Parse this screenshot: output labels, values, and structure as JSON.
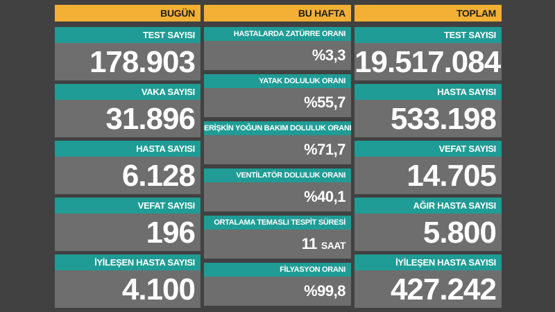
{
  "columns": {
    "today": {
      "header": "BUGÜN",
      "cards": [
        {
          "label": "TEST SAYISI",
          "value": "178.903"
        },
        {
          "label": "VAKA SAYISI",
          "value": "31.896"
        },
        {
          "label": "HASTA SAYISI",
          "value": "6.128"
        },
        {
          "label": "VEFAT SAYISI",
          "value": "196"
        },
        {
          "label": "İYİLEŞEN HASTA SAYISI",
          "value": "4.100"
        }
      ]
    },
    "week": {
      "header": "BU HAFTA",
      "cards": [
        {
          "label": "HASTALARDA ZATÜRRE ORANI",
          "value": "%3,3"
        },
        {
          "label": "YATAK DOLULUK ORANI",
          "value": "%55,7"
        },
        {
          "label": "ERİŞKİN YOĞUN BAKIM DOLULUK ORANI",
          "value": "%71,7"
        },
        {
          "label": "VENTİLATÖR DOLULUK ORANI",
          "value": "%40,1"
        },
        {
          "label": "ORTALAMA TEMASLI TESPİT SÜRESİ",
          "value": "11",
          "unit": "SAAT"
        },
        {
          "label": "FİLYASYON ORANI",
          "value": "%99,8"
        }
      ]
    },
    "total": {
      "header": "TOPLAM",
      "cards": [
        {
          "label": "TEST SAYISI",
          "value": "19.517.084"
        },
        {
          "label": "HASTA SAYISI",
          "value": "533.198"
        },
        {
          "label": "VEFAT SAYISI",
          "value": "14.705"
        },
        {
          "label": "AĞIR HASTA SAYISI",
          "value": "5.800"
        },
        {
          "label": "İYİLEŞEN HASTA SAYISI",
          "value": "427.242"
        }
      ]
    }
  },
  "colors": {
    "background": "#414141",
    "header": "#f3b034",
    "label": "#1f9c95",
    "card": "#6e6e6e"
  }
}
